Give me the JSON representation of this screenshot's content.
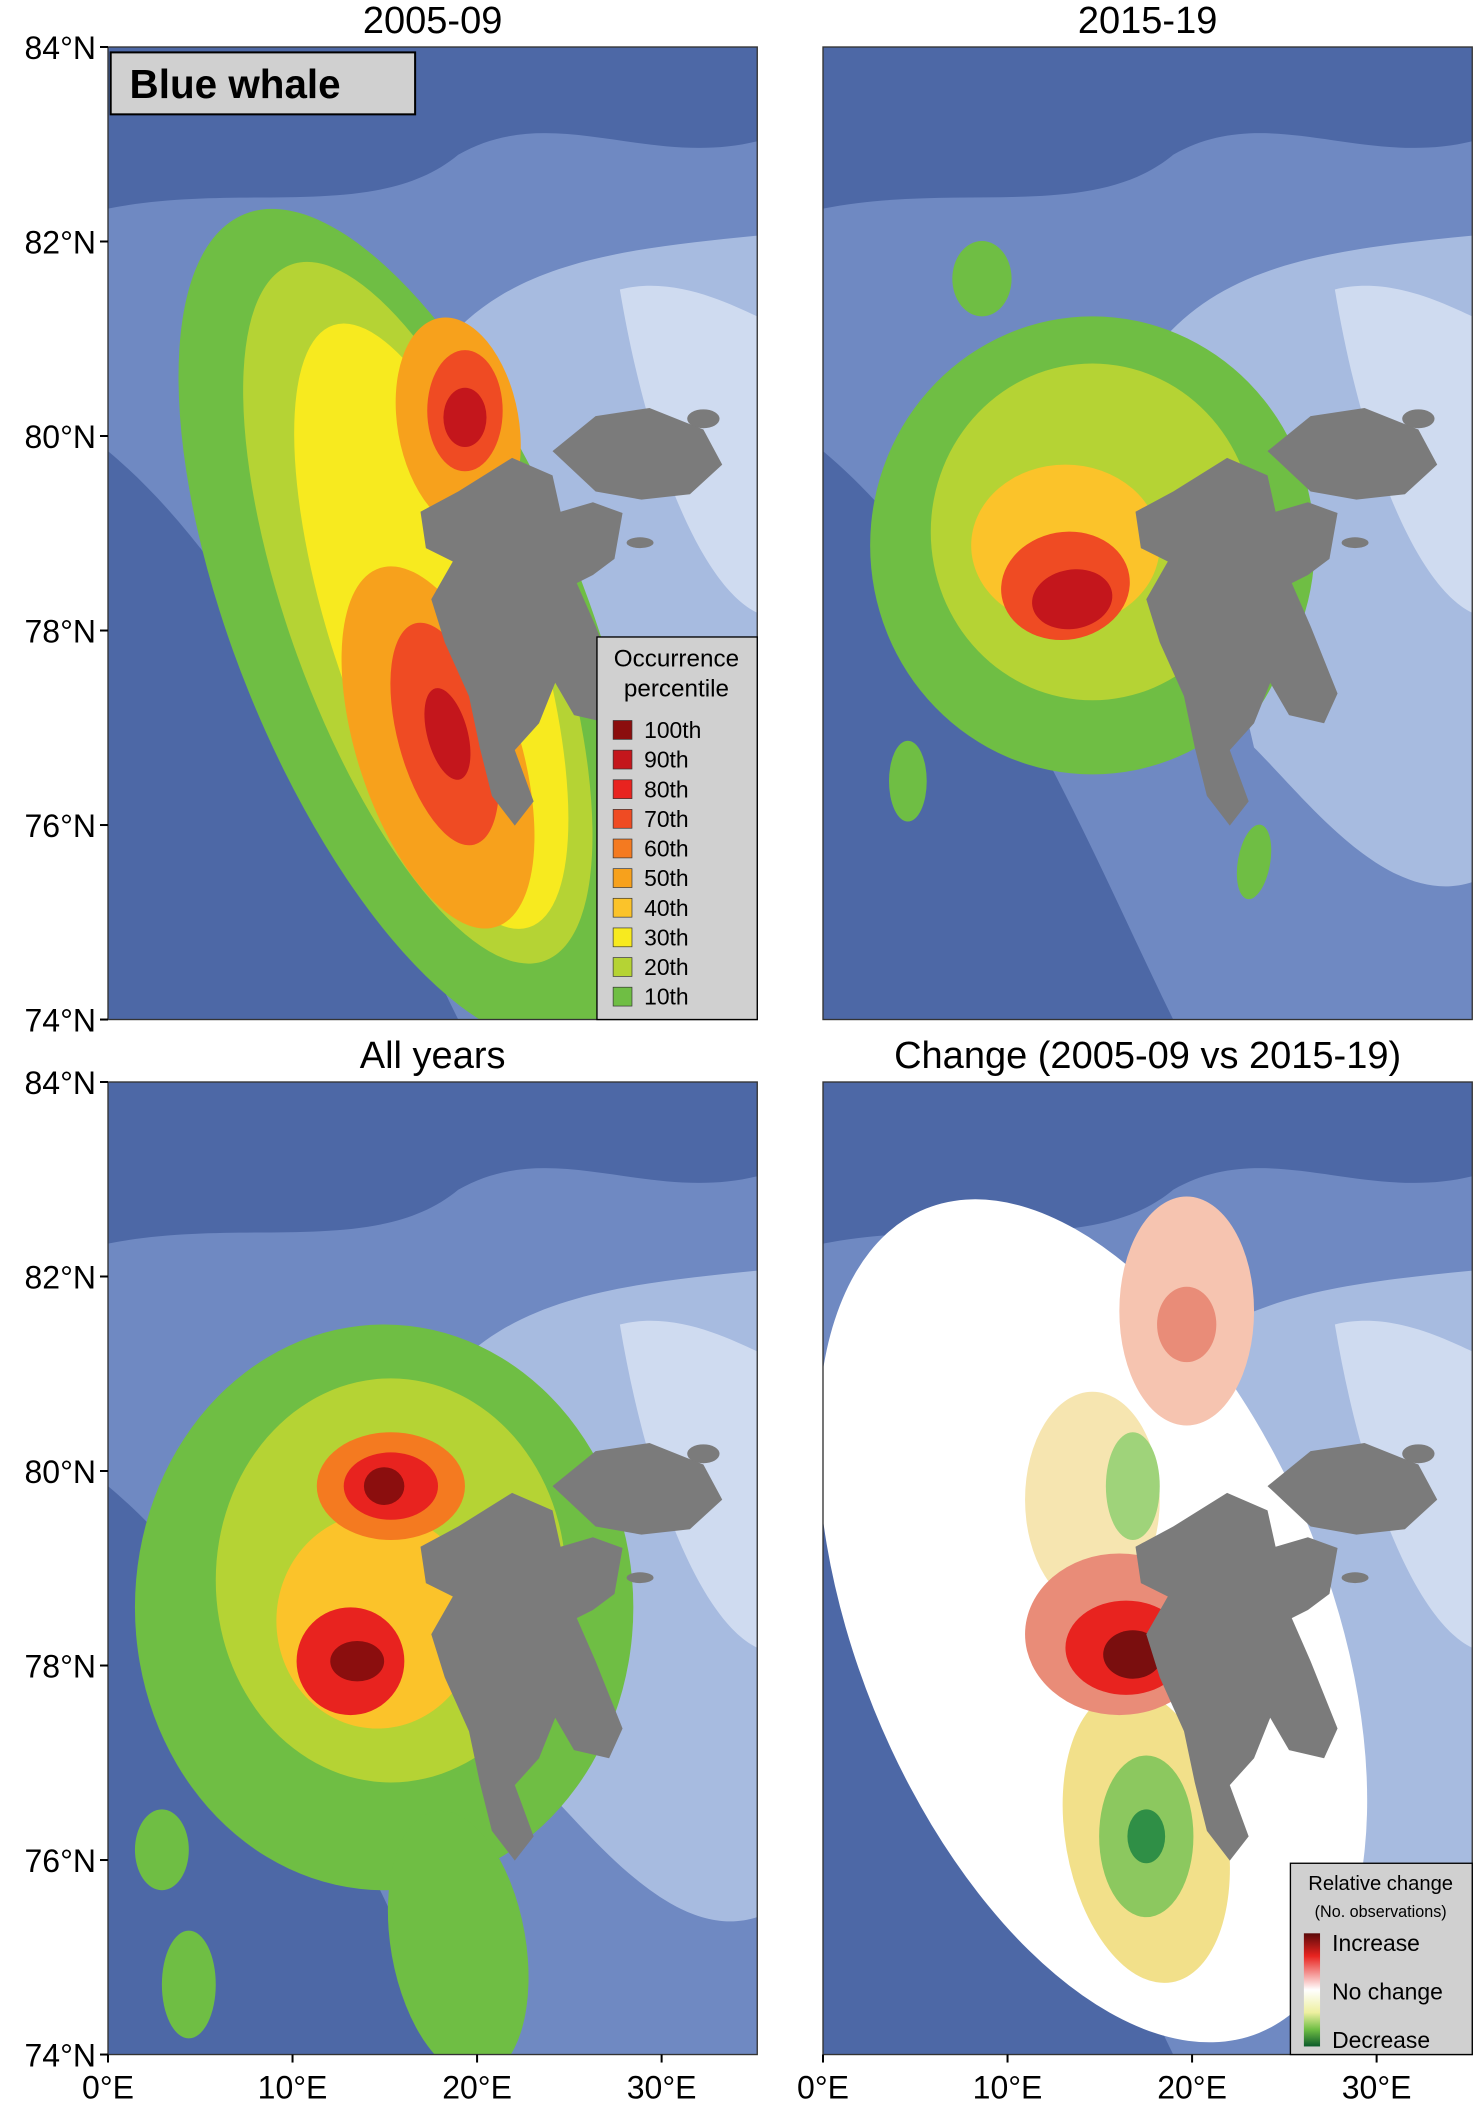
{
  "species_label": "Blue whale",
  "panels": [
    {
      "title": "2005-09"
    },
    {
      "title": "2015-19"
    },
    {
      "title": "All years"
    },
    {
      "title": "Change (2005-09 vs 2015-19)"
    }
  ],
  "y_axis_labels": [
    "84°N",
    "82°N",
    "80°N",
    "78°N",
    "76°N",
    "74°N"
  ],
  "x_axis_labels": [
    "0°E",
    "10°E",
    "20°E",
    "30°E"
  ],
  "occurrence_legend": {
    "title": [
      "Occurrence",
      "percentile"
    ],
    "items": [
      {
        "label": "100th",
        "color": "#8b0e0e"
      },
      {
        "label": "90th",
        "color": "#c4161c"
      },
      {
        "label": "80th",
        "color": "#e8231f"
      },
      {
        "label": "70th",
        "color": "#ef4b23"
      },
      {
        "label": "60th",
        "color": "#f47a20"
      },
      {
        "label": "50th",
        "color": "#f7a11c"
      },
      {
        "label": "40th",
        "color": "#fbc32a"
      },
      {
        "label": "30th",
        "color": "#f7ea1f"
      },
      {
        "label": "20th",
        "color": "#b5d334"
      },
      {
        "label": "10th",
        "color": "#6fbe44"
      }
    ]
  },
  "change_legend": {
    "title": "Relative change",
    "subtitle": "(No. observations)",
    "labels": [
      "Increase",
      "No change",
      "Decrease"
    ]
  }
}
